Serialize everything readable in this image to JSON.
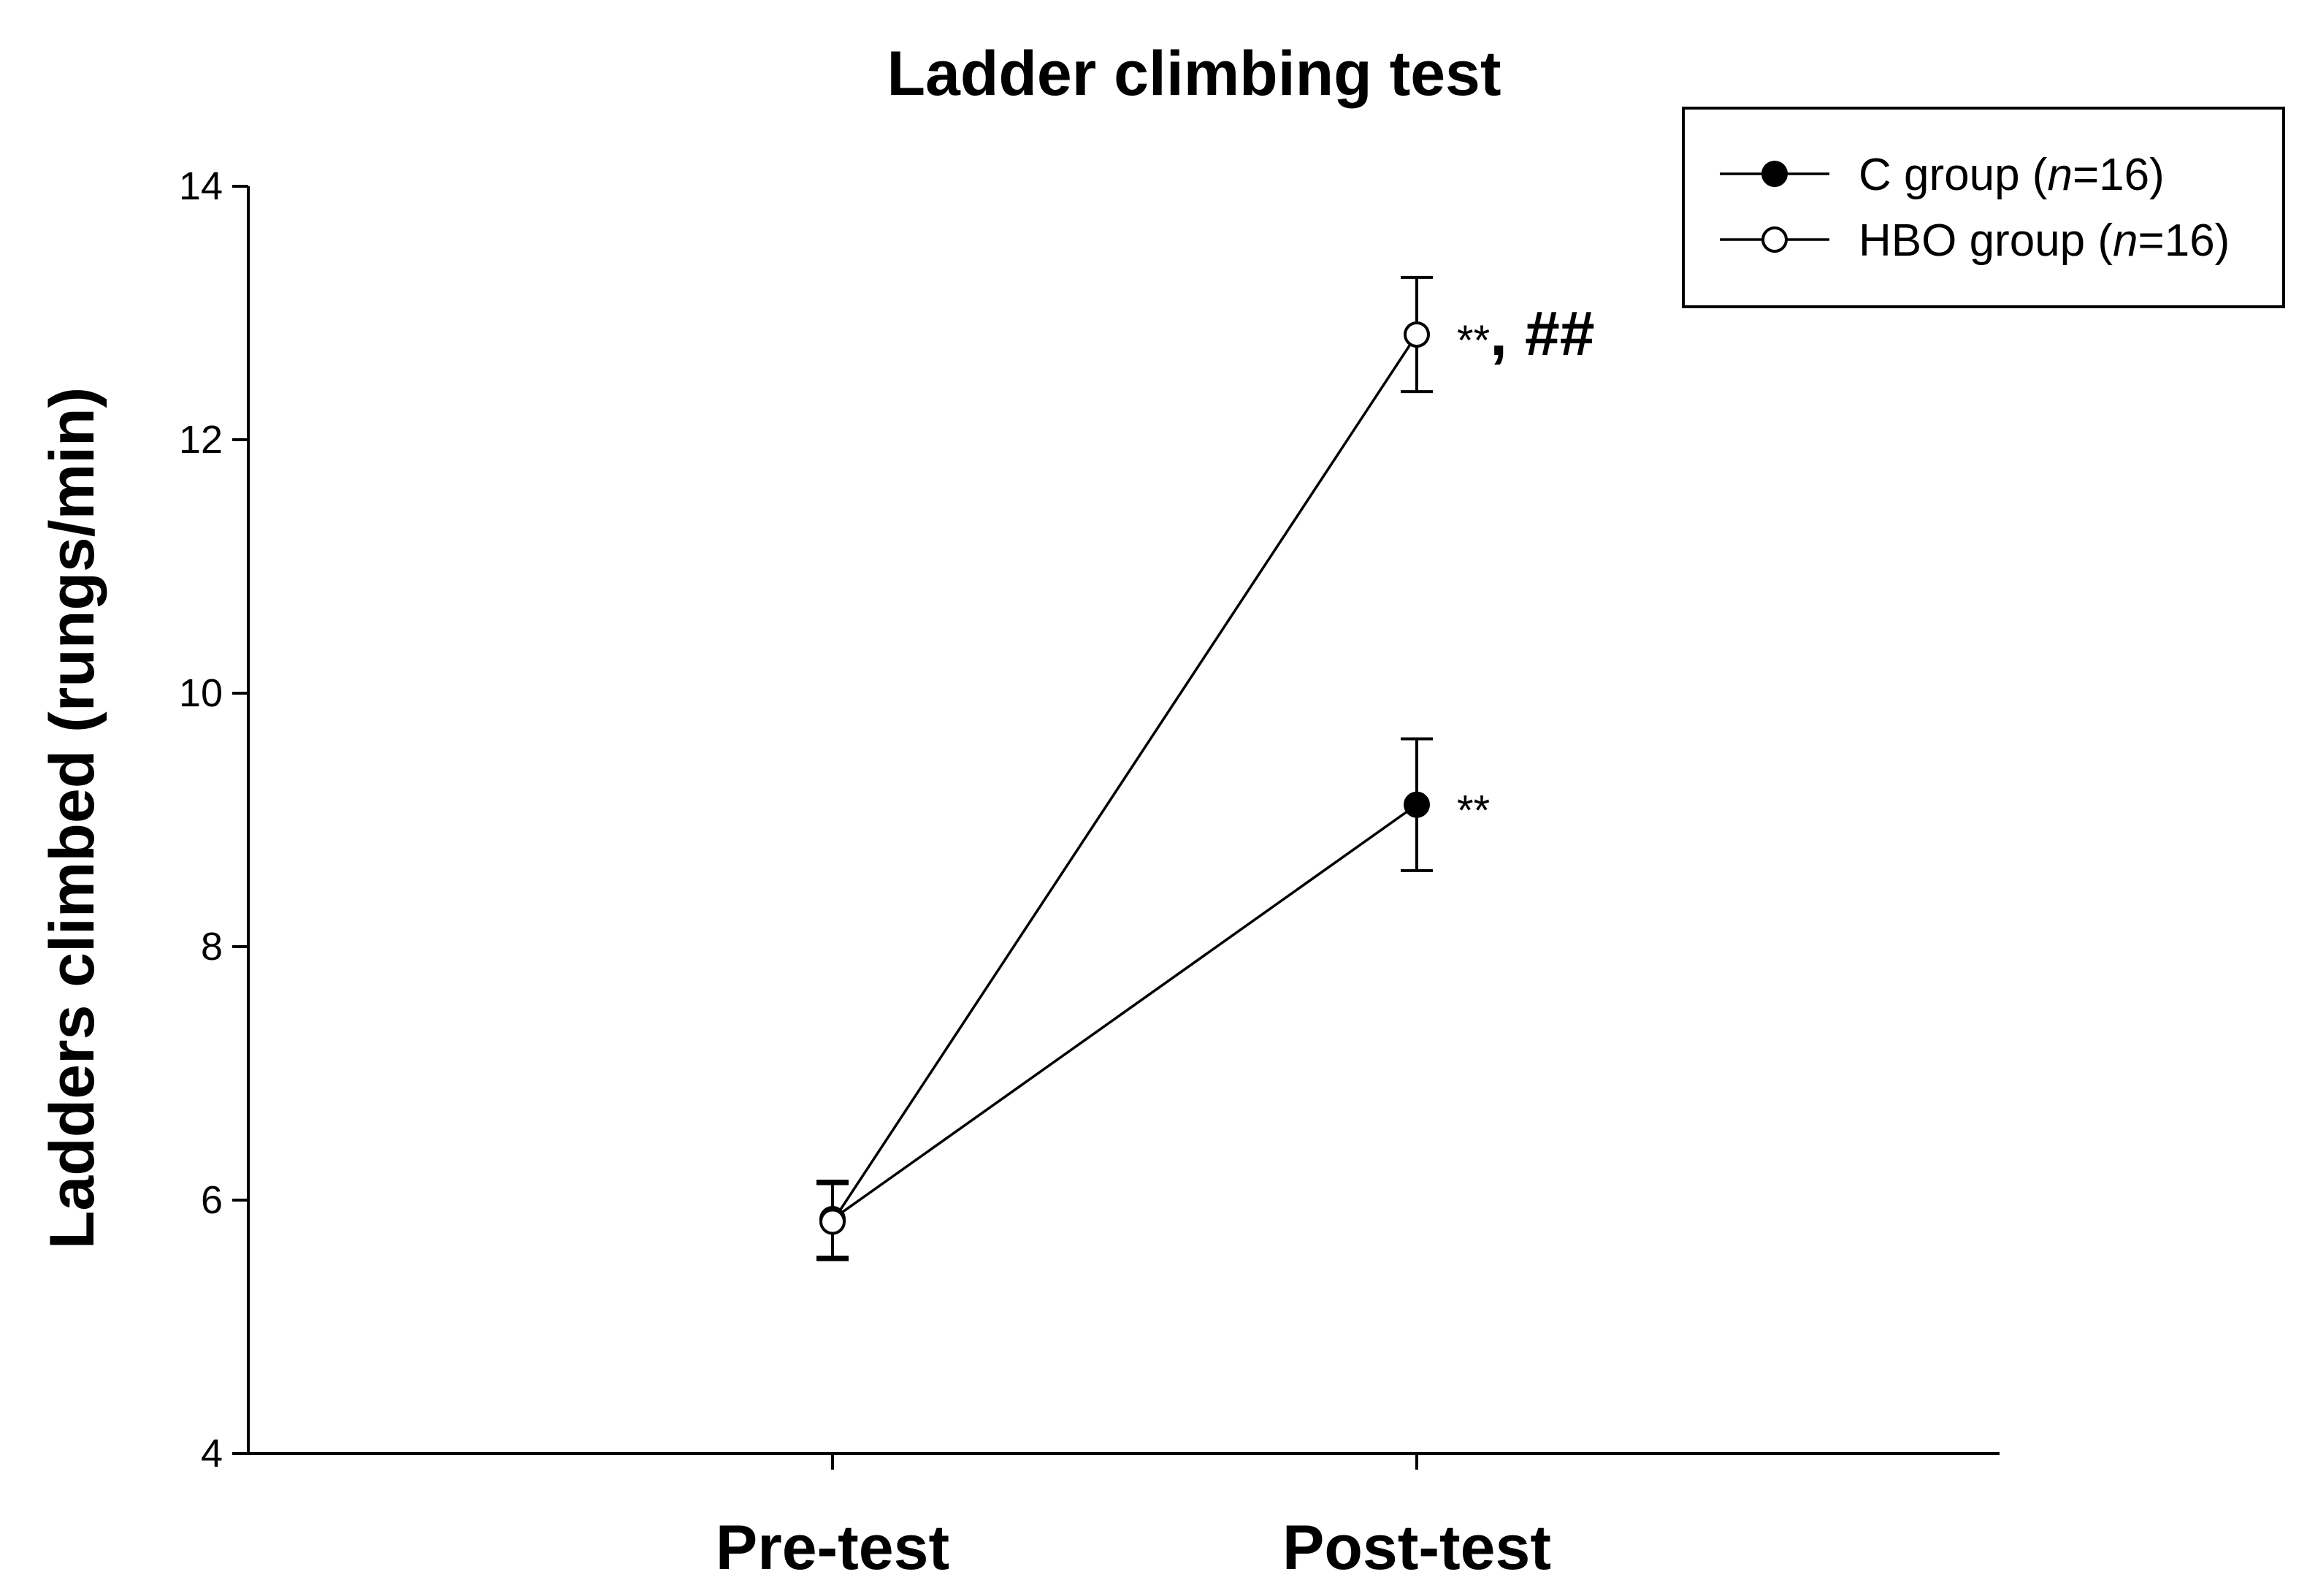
{
  "chart_data": {
    "type": "line",
    "title": "Ladder climbing test",
    "xlabel": "",
    "ylabel": "Ladders climbed (rungs/min)",
    "categories": [
      "Pre-test",
      "Post-test"
    ],
    "ylim": [
      4,
      14
    ],
    "yticks": [
      4,
      6,
      8,
      10,
      12,
      14
    ],
    "grid": false,
    "legend_position": "top-right",
    "series": [
      {
        "name": "C group (n=16)",
        "legend_parts": [
          "C group (",
          "n",
          "=16)"
        ],
        "marker": "filled-circle",
        "values": [
          5.85,
          9.12
        ],
        "errors": [
          0.3,
          0.52
        ]
      },
      {
        "name": "HBO group (n=16)",
        "legend_parts": [
          "HBO group (",
          "n",
          "=16)"
        ],
        "marker": "open-circle",
        "values": [
          5.83,
          12.83
        ],
        "errors": [
          0.3,
          0.45
        ]
      }
    ],
    "annotations": [
      {
        "series": 0,
        "category": "Post-test",
        "stars": "**",
        "hash": ""
      },
      {
        "series": 1,
        "category": "Post-test",
        "stars": "**",
        "hash": ", ##"
      }
    ]
  }
}
